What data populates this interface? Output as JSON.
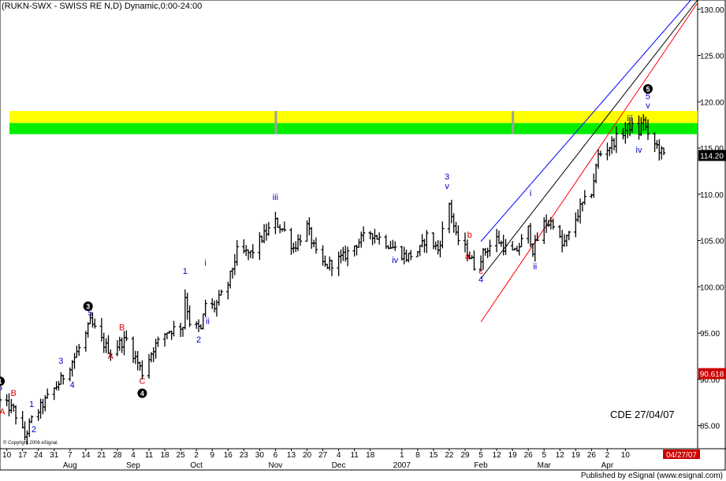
{
  "title": "(RUKN-SWX - SWISS RE N,D) Dynamic,0:00-24:00",
  "annotation_text": "CDE 27/04/07",
  "copyright": "© Copyright 2006 eSignal.",
  "publisher": "Published by eSignal (www.esignal.com)",
  "colors": {
    "bar": "#000000",
    "wave_blue": "#0000cc",
    "wave_red": "#dd0000",
    "channel_blue": "#0000ff",
    "channel_black": "#000000",
    "channel_red": "#ff0000",
    "zone_yellow": "#ffff00",
    "zone_green": "#00ee00",
    "badge_bg": "#000000",
    "badge_fg": "#ffffff",
    "date_badge_bg": "#cc0000",
    "date_badge_fg": "#ffffff"
  },
  "chart_data": {
    "type": "ohlc-bar",
    "ylim": [
      82.5,
      131
    ],
    "y_ticks": [
      85,
      90,
      95,
      100,
      105,
      110,
      115,
      120,
      125,
      130
    ],
    "y_tick_labels": [
      "85.00",
      "90.00",
      "95.00",
      "100.00",
      "105.00",
      "110.00",
      "115.00",
      "120.00",
      "125.00",
      "130.00"
    ],
    "x_range": [
      "2006-07-07",
      "2007-05-12"
    ],
    "x_day_ticks": [
      {
        "date": "2006-07-10",
        "label": "10"
      },
      {
        "date": "2006-07-17",
        "label": "17"
      },
      {
        "date": "2006-07-24",
        "label": "24"
      },
      {
        "date": "2006-07-31",
        "label": "31"
      },
      {
        "date": "2006-08-07",
        "label": "7"
      },
      {
        "date": "2006-08-14",
        "label": "14"
      },
      {
        "date": "2006-08-21",
        "label": "21"
      },
      {
        "date": "2006-08-28",
        "label": "28"
      },
      {
        "date": "2006-09-04",
        "label": "4"
      },
      {
        "date": "2006-09-11",
        "label": "11"
      },
      {
        "date": "2006-09-18",
        "label": "18"
      },
      {
        "date": "2006-09-25",
        "label": "25"
      },
      {
        "date": "2006-10-02",
        "label": "2"
      },
      {
        "date": "2006-10-09",
        "label": "9"
      },
      {
        "date": "2006-10-16",
        "label": "16"
      },
      {
        "date": "2006-10-23",
        "label": "23"
      },
      {
        "date": "2006-10-30",
        "label": "30"
      },
      {
        "date": "2006-11-06",
        "label": "6"
      },
      {
        "date": "2006-11-13",
        "label": "13"
      },
      {
        "date": "2006-11-20",
        "label": "20"
      },
      {
        "date": "2006-11-27",
        "label": "27"
      },
      {
        "date": "2006-12-04",
        "label": "4"
      },
      {
        "date": "2006-12-11",
        "label": "11"
      },
      {
        "date": "2006-12-18",
        "label": "18"
      },
      {
        "date": "2007-01-01",
        "label": "1"
      },
      {
        "date": "2007-01-08",
        "label": "8"
      },
      {
        "date": "2007-01-15",
        "label": "15"
      },
      {
        "date": "2007-01-22",
        "label": "22"
      },
      {
        "date": "2007-01-29",
        "label": "29"
      },
      {
        "date": "2007-02-05",
        "label": "5"
      },
      {
        "date": "2007-02-12",
        "label": "12"
      },
      {
        "date": "2007-02-19",
        "label": "19"
      },
      {
        "date": "2007-02-26",
        "label": "26"
      },
      {
        "date": "2007-03-05",
        "label": "5"
      },
      {
        "date": "2007-03-12",
        "label": "12"
      },
      {
        "date": "2007-03-19",
        "label": "19"
      },
      {
        "date": "2007-03-26",
        "label": "26"
      },
      {
        "date": "2007-04-02",
        "label": "2"
      },
      {
        "date": "2007-04-10",
        "label": "10"
      }
    ],
    "x_month_ticks": [
      {
        "date": "2006-08-07",
        "label": "Aug"
      },
      {
        "date": "2006-09-04",
        "label": "Sep"
      },
      {
        "date": "2006-10-02",
        "label": "Oct"
      },
      {
        "date": "2006-11-06",
        "label": "Nov"
      },
      {
        "date": "2006-12-04",
        "label": "Dec"
      },
      {
        "date": "2007-01-01",
        "label": "2007"
      },
      {
        "date": "2007-02-05",
        "label": "Feb"
      },
      {
        "date": "2007-03-05",
        "label": "Mar"
      },
      {
        "date": "2007-04-02",
        "label": "Apr"
      }
    ],
    "current_date_label": "04/27/07",
    "last_price": 114.2,
    "last_price_label": "114.20",
    "fib_level": 90.618,
    "fib_label": "90.618",
    "zones": [
      {
        "from": 117.7,
        "to": 119.0,
        "color": "yellow"
      },
      {
        "from": 116.5,
        "to": 117.7,
        "color": "green"
      }
    ],
    "zone_dividers": [
      "2006-11-06",
      "2007-02-19"
    ],
    "channels": [
      {
        "color": "blue",
        "from": {
          "date": "2007-02-05",
          "price": 104.9
        },
        "to": {
          "date": "2007-05-09",
          "price": 131.0
        }
      },
      {
        "color": "black",
        "from": {
          "date": "2007-02-05",
          "price": 100.9
        },
        "to": {
          "date": "2007-05-12",
          "price": 131.0
        }
      },
      {
        "color": "red",
        "from": {
          "date": "2007-02-05",
          "price": 96.2
        },
        "to": {
          "date": "2007-05-12",
          "price": 130.7
        }
      }
    ],
    "price_path": [
      [
        "2006-07-07",
        87.6
      ],
      [
        "2006-07-13",
        86.7
      ],
      [
        "2006-07-18",
        83.8
      ],
      [
        "2006-07-21",
        85.6
      ],
      [
        "2006-07-28",
        88.0
      ],
      [
        "2006-08-03",
        89.9
      ],
      [
        "2006-08-09",
        92.4
      ],
      [
        "2006-08-14",
        94.8
      ],
      [
        "2006-08-16",
        96.2
      ],
      [
        "2006-08-22",
        93.8
      ],
      [
        "2006-08-25",
        93.0
      ],
      [
        "2006-08-29",
        93.9
      ],
      [
        "2006-09-01",
        94.3
      ],
      [
        "2006-09-06",
        91.8
      ],
      [
        "2006-09-08",
        90.7
      ],
      [
        "2006-09-13",
        93.4
      ],
      [
        "2006-09-19",
        95.2
      ],
      [
        "2006-09-26",
        95.8
      ],
      [
        "2006-09-27",
        99.0
      ],
      [
        "2006-09-29",
        96.2
      ],
      [
        "2006-10-04",
        95.3
      ],
      [
        "2006-10-06",
        98.2
      ],
      [
        "2006-10-10",
        97.8
      ],
      [
        "2006-10-16",
        100.3
      ],
      [
        "2006-10-20",
        103.8
      ],
      [
        "2006-10-26",
        103.6
      ],
      [
        "2006-11-01",
        105.6
      ],
      [
        "2006-11-06",
        107.0
      ],
      [
        "2006-11-10",
        106.0
      ],
      [
        "2006-11-14",
        104.2
      ],
      [
        "2006-11-20",
        106.5
      ],
      [
        "2006-11-24",
        103.5
      ],
      [
        "2006-11-28",
        102.2
      ],
      [
        "2006-12-06",
        103.2
      ],
      [
        "2006-12-12",
        104.7
      ],
      [
        "2006-12-18",
        105.9
      ],
      [
        "2006-12-25",
        104.8
      ],
      [
        "2007-01-03",
        103.2
      ],
      [
        "2007-01-09",
        104.0
      ],
      [
        "2007-01-12",
        105.5
      ],
      [
        "2007-01-17",
        104.0
      ],
      [
        "2007-01-22",
        109.0
      ],
      [
        "2007-01-25",
        105.4
      ],
      [
        "2007-01-30",
        103.8
      ],
      [
        "2007-02-02",
        102.3
      ],
      [
        "2007-02-08",
        104.2
      ],
      [
        "2007-02-12",
        105.2
      ],
      [
        "2007-02-16",
        104.1
      ],
      [
        "2007-02-20",
        103.6
      ],
      [
        "2007-02-26",
        106.2
      ],
      [
        "2007-02-28",
        104.0
      ],
      [
        "2007-03-05",
        106.8
      ],
      [
        "2007-03-09",
        107.0
      ],
      [
        "2007-03-13",
        104.4
      ],
      [
        "2007-03-16",
        105.6
      ],
      [
        "2007-03-21",
        108.5
      ],
      [
        "2007-03-26",
        110.3
      ],
      [
        "2007-03-29",
        114.2
      ],
      [
        "2007-04-03",
        115.2
      ],
      [
        "2007-04-06",
        116.0
      ],
      [
        "2007-04-12",
        117.4
      ],
      [
        "2007-04-16",
        116.7
      ],
      [
        "2007-04-18",
        118.2
      ],
      [
        "2007-04-20",
        116.1
      ],
      [
        "2007-04-24",
        115.2
      ],
      [
        "2007-04-27",
        114.2
      ]
    ],
    "wave_labels": [
      {
        "text": "5",
        "date": "2006-07-07",
        "price": 88.8,
        "color": "blue"
      },
      {
        "text": "A",
        "date": "2006-07-08",
        "price": 86.2,
        "color": "red"
      },
      {
        "text": "B",
        "date": "2006-07-13",
        "price": 88.2,
        "color": "red"
      },
      {
        "text": "1",
        "date": "2006-07-21",
        "price": 87.0,
        "color": "blue"
      },
      {
        "text": "2",
        "date": "2006-07-22",
        "price": 84.3,
        "color": "blue"
      },
      {
        "text": "3",
        "date": "2006-08-03",
        "price": 91.7,
        "color": "blue"
      },
      {
        "text": "4",
        "date": "2006-08-08",
        "price": 89.1,
        "color": "blue"
      },
      {
        "text": "5",
        "date": "2006-08-16",
        "price": 96.9,
        "color": "blue"
      },
      {
        "text": "A",
        "date": "2006-08-25",
        "price": 92.2,
        "color": "red"
      },
      {
        "text": "B",
        "date": "2006-08-30",
        "price": 95.3,
        "color": "red"
      },
      {
        "text": "C",
        "date": "2006-09-08",
        "price": 89.5,
        "color": "red"
      },
      {
        "text": "1",
        "date": "2006-09-27",
        "price": 101.4,
        "color": "blue"
      },
      {
        "text": "2",
        "date": "2006-10-03",
        "price": 94.0,
        "color": "blue"
      },
      {
        "text": "i",
        "date": "2006-10-06",
        "price": 102.3,
        "color": "blue"
      },
      {
        "text": "ii",
        "date": "2006-10-07",
        "price": 96.0,
        "color": "blue"
      },
      {
        "text": "iii",
        "date": "2006-11-06",
        "price": 109.4,
        "color": "blue"
      },
      {
        "text": "iv",
        "date": "2006-12-29",
        "price": 102.6,
        "color": "blue"
      },
      {
        "text": "3",
        "date": "2007-01-21",
        "price": 111.6,
        "color": "blue"
      },
      {
        "text": "v",
        "date": "2007-01-21",
        "price": 110.6,
        "color": "blue"
      },
      {
        "text": "b",
        "date": "2007-01-31",
        "price": 105.3,
        "color": "red"
      },
      {
        "text": "a",
        "date": "2007-01-30",
        "price": 103.0,
        "color": "red"
      },
      {
        "text": "c",
        "date": "2007-02-05",
        "price": 101.4,
        "color": "red"
      },
      {
        "text": "4",
        "date": "2007-02-05",
        "price": 100.5,
        "color": "blue"
      },
      {
        "text": "i",
        "date": "2007-02-27",
        "price": 109.8,
        "color": "blue"
      },
      {
        "text": "ii",
        "date": "2007-03-01",
        "price": 101.9,
        "color": "blue"
      },
      {
        "text": "iii",
        "date": "2007-04-12",
        "price": 117.9,
        "color": "blue"
      },
      {
        "text": "iv",
        "date": "2007-04-16",
        "price": 114.5,
        "color": "blue"
      },
      {
        "text": "5",
        "date": "2007-04-20",
        "price": 120.3,
        "color": "blue"
      },
      {
        "text": "v",
        "date": "2007-04-20",
        "price": 119.3,
        "color": "blue"
      }
    ],
    "degree_badges": [
      {
        "text": "1",
        "date": "2006-07-07",
        "price": 89.8
      },
      {
        "text": "3",
        "date": "2006-08-15",
        "price": 97.9
      },
      {
        "text": "4",
        "date": "2006-09-08",
        "price": 88.5
      },
      {
        "text": "5",
        "date": "2007-04-20",
        "price": 121.4
      }
    ]
  }
}
